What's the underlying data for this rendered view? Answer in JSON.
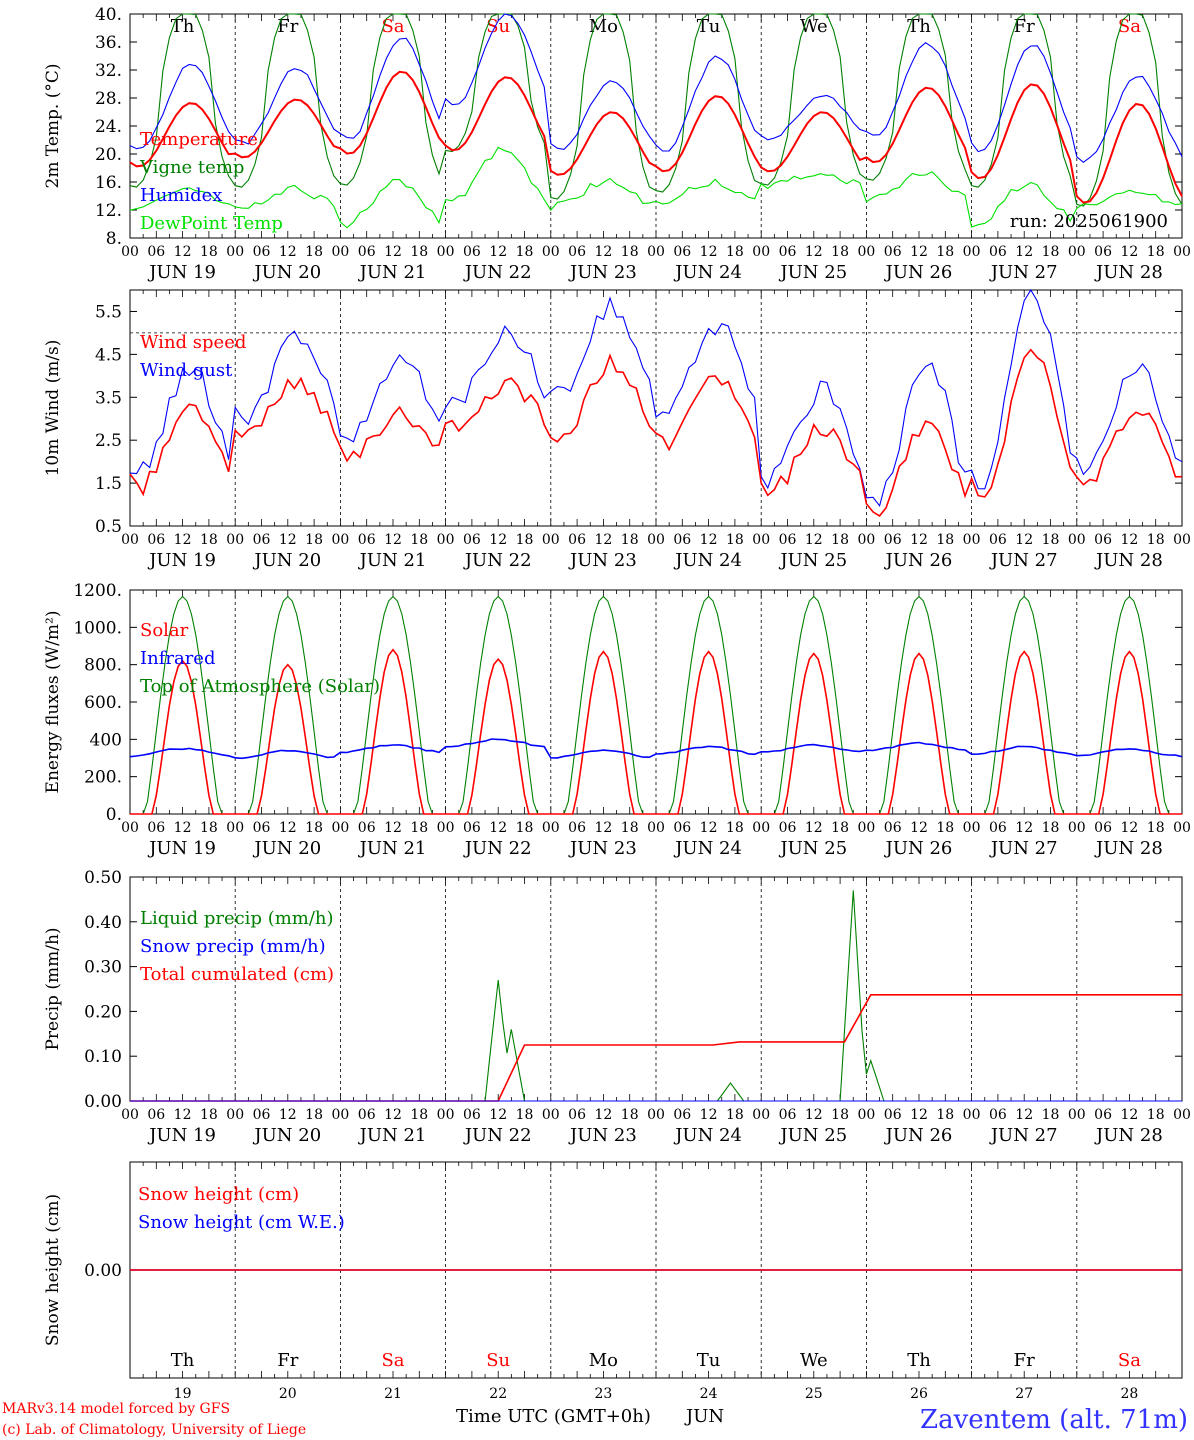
{
  "days": [
    "Th",
    "Fr",
    "Sa",
    "Su",
    "Mo",
    "Tu",
    "We",
    "Th",
    "Fr",
    "Sa"
  ],
  "weekend_days": [
    2,
    3,
    9
  ],
  "dates": [
    "JUN 19",
    "JUN 20",
    "JUN 21",
    "JUN 22",
    "JUN 23",
    "JUN 24",
    "JUN 25",
    "JUN 26",
    "JUN 27",
    "JUN 28"
  ],
  "day_numbers": [
    "19",
    "20",
    "21",
    "22",
    "23",
    "24",
    "25",
    "26",
    "27",
    "28"
  ],
  "hour_ticks": [
    "00",
    "06",
    "12",
    "18"
  ],
  "last_hour_tick": "00",
  "run_label": "run: 2025061900",
  "x_axis_title": "Time UTC (GMT+0h)",
  "x_axis_month": "JUN",
  "credit_line1": "MARv3.14 model forced by GFS",
  "credit_line2": "(c) Lab. of Climatology, University of Liege",
  "station": "Zaventem (alt. 71m)",
  "colors": {
    "red": "#ff0000",
    "green": "#008000",
    "blue": "#0000ff",
    "lightgreen": "#00e000",
    "station": "#3333ff"
  },
  "chart_data": [
    {
      "type": "line",
      "ylabel": "2m Temp. (°C)",
      "ylim": [
        8,
        40
      ],
      "yticks": [
        "8.",
        "12.",
        "16.",
        "20.",
        "24.",
        "28.",
        "32.",
        "36.",
        "40."
      ],
      "ytick_values": [
        8,
        12,
        16,
        20,
        24,
        28,
        32,
        36,
        40
      ],
      "series": [
        {
          "name": "Temperature",
          "color": "#ff0000",
          "min": [
            18.2,
            19.5,
            20,
            20.5,
            17,
            17.5,
            17.5,
            18.8,
            16.5,
            13
          ],
          "max": [
            27.3,
            27.8,
            31.8,
            31,
            26,
            28.3,
            26,
            29.5,
            30,
            27.2
          ]
        },
        {
          "name": "Vigne temp",
          "color": "#008000",
          "min": [
            15.2,
            15.2,
            15.5,
            20.3,
            13.5,
            14.5,
            15.5,
            16.2,
            15.2,
            12.5
          ],
          "max": [
            41,
            41,
            41,
            41,
            41,
            41,
            41,
            41,
            41,
            41
          ]
        },
        {
          "name": "Humidex",
          "color": "#0000ff",
          "min": [
            20.5,
            21.5,
            22,
            27,
            20.5,
            20.5,
            22,
            22.5,
            20.5,
            19
          ],
          "max": [
            33,
            32.2,
            36.5,
            40,
            30.5,
            33.8,
            28.5,
            35.8,
            35.5,
            31
          ]
        },
        {
          "name": "DewPoint Temp",
          "color": "#00e000",
          "min": [
            12.5,
            12.5,
            10,
            13,
            12.5,
            13,
            15.5,
            13.5,
            10,
            12.5
          ],
          "max": [
            14.7,
            15,
            16,
            20.5,
            16.2,
            16,
            17,
            17.2,
            15.8,
            14.8
          ]
        }
      ]
    },
    {
      "type": "line",
      "ylabel": "10m Wind (m/s)",
      "ylim": [
        0.5,
        6
      ],
      "yticks": [
        "0.5",
        "1.5",
        "2.5",
        "3.5",
        "4.5",
        "5.5"
      ],
      "ytick_values": [
        0.5,
        1.5,
        2.5,
        3.5,
        4.5,
        5.5
      ],
      "reference_line": 5.0,
      "series": [
        {
          "name": "Wind speed",
          "color": "#ff0000",
          "min": [
            1.4,
            2.6,
            2.1,
            2.8,
            2.6,
            2.4,
            1.3,
            0.8,
            1.2,
            1.5
          ],
          "max": [
            3.2,
            3.8,
            3.1,
            3.8,
            4.3,
            4.0,
            2.8,
            2.9,
            4.5,
            3.2
          ]
        },
        {
          "name": "Wind gust",
          "color": "#0000ff",
          "min": [
            1.8,
            3.0,
            2.5,
            3.4,
            3.5,
            3.1,
            1.6,
            1.0,
            1.5,
            1.9
          ],
          "max": [
            4.1,
            4.9,
            4.5,
            5.0,
            5.6,
            5.2,
            3.7,
            4.3,
            5.8,
            4.1
          ]
        }
      ]
    },
    {
      "type": "line",
      "ylabel": "Energy fluxes (W/m²)",
      "ylim": [
        0,
        1200
      ],
      "yticks": [
        "0.",
        "200.",
        "400",
        "600.",
        "800.",
        "1000.",
        "1200."
      ],
      "ytick_values": [
        0,
        200,
        400,
        600,
        800,
        1000,
        1200
      ],
      "series": [
        {
          "name": "Solar",
          "color": "#ff0000",
          "peaks": [
            820,
            800,
            880,
            830,
            870,
            870,
            860,
            860,
            870,
            870
          ]
        },
        {
          "name": "Infrared",
          "color": "#0000ff",
          "base": [
            330,
            320,
            350,
            380,
            320,
            340,
            350,
            360,
            340,
            330
          ]
        },
        {
          "name": "Top of Atmosphere (Solar)",
          "color": "#008000",
          "peak": 1165
        }
      ]
    },
    {
      "type": "line",
      "ylabel": "Precip (mm/h)",
      "ylim": [
        0,
        0.5
      ],
      "yticks": [
        "0.00",
        "0.10",
        "0.20",
        "0.30",
        "0.40",
        "0.50"
      ],
      "ytick_values": [
        0,
        0.1,
        0.2,
        0.3,
        0.4,
        0.5
      ],
      "series": [
        {
          "name": "Liquid precip (mm/h)",
          "color": "#008000",
          "events": [
            {
              "day": 3,
              "hour": 12,
              "value": 0.27
            },
            {
              "day": 3,
              "hour": 15,
              "value": 0.16
            },
            {
              "day": 5,
              "hour": 17,
              "value": 0.04
            },
            {
              "day": 6,
              "hour": 21,
              "value": 0.47
            },
            {
              "day": 7,
              "hour": 1,
              "value": 0.09
            }
          ]
        },
        {
          "name": "Snow precip (mm/h)",
          "color": "#0000ff",
          "values": []
        },
        {
          "name": "Total cumulated (cm)",
          "color": "#ff0000",
          "steps": [
            {
              "day": 3,
              "hour": 18,
              "value": 0.125
            },
            {
              "day": 5,
              "hour": 19,
              "value": 0.132
            },
            {
              "day": 7,
              "hour": 1,
              "value": 0.237
            }
          ]
        }
      ]
    },
    {
      "type": "line",
      "ylabel": "Snow height (cm)",
      "ylim": [
        -0.5,
        0.5
      ],
      "yticks": [
        "0.00"
      ],
      "ytick_values": [
        0
      ],
      "series": [
        {
          "name": "Snow height (cm)",
          "color": "#ff0000",
          "value": 0
        },
        {
          "name": "Snow height (cm W.E.)",
          "color": "#0000ff",
          "value": 0
        }
      ]
    }
  ]
}
